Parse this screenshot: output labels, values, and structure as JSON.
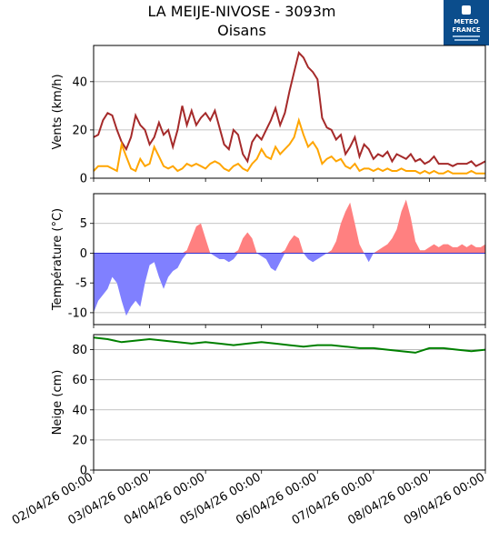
{
  "header": {
    "title": "LA MEIJE-NIVOSE - 3093m",
    "subtitle": "Oisans",
    "logo_line1": "METEO",
    "logo_line2": "FRANCE"
  },
  "colors": {
    "gust": "#a52a2a",
    "wind": "#ffa500",
    "temp_pos": "#ff8080",
    "temp_neg": "#8080ff",
    "snow": "#008000",
    "grid": "#b0b0b0",
    "logo_bg": "#0b4d8c"
  },
  "x_tick_labels": [
    "02/04/26 00:00",
    "03/04/26 00:00",
    "04/04/26 00:00",
    "05/04/26 00:00",
    "06/04/26 00:00",
    "07/04/26 00:00",
    "08/04/26 00:00",
    "09/04/26 00:00"
  ],
  "chart_data": [
    {
      "type": "line",
      "ylabel": "Vents (km/h)",
      "ylim": [
        0,
        55
      ],
      "yticks": [
        0,
        20,
        40
      ],
      "grid": true,
      "x_unit": "days since 02/04/26 00:00",
      "series": [
        {
          "x": [
            0,
            0.083,
            0.167,
            0.25,
            0.333,
            0.417,
            0.5,
            0.583,
            0.667,
            0.75,
            0.833,
            0.917,
            1.0,
            1.083,
            1.167,
            1.25,
            1.333,
            1.417,
            1.5,
            1.583,
            1.667,
            1.75,
            1.833,
            1.917,
            2.0,
            2.083,
            2.167,
            2.25,
            2.333,
            2.417,
            2.5,
            2.583,
            2.667,
            2.75,
            2.833,
            2.917,
            3.0,
            3.083,
            3.167,
            3.25,
            3.333,
            3.417,
            3.5,
            3.583,
            3.667,
            3.75,
            3.833,
            3.917,
            4.0,
            4.083,
            4.167,
            4.25,
            4.333,
            4.417,
            4.5,
            4.583,
            4.667,
            4.75,
            4.833,
            4.917,
            5.0,
            5.083,
            5.167,
            5.25,
            5.333,
            5.417,
            5.5,
            5.583,
            5.667,
            5.75,
            5.833,
            5.917,
            6.0,
            6.083,
            6.167,
            6.25,
            6.333,
            6.417,
            6.5,
            6.583,
            6.667,
            6.75,
            6.833,
            6.917,
            7.0
          ],
          "values": [
            17,
            18,
            24,
            27,
            26,
            20,
            15,
            12,
            17,
            26,
            22,
            20,
            14,
            17,
            23,
            18,
            20,
            13,
            20,
            30,
            22,
            28,
            22,
            25,
            27,
            24,
            28,
            21,
            14,
            12,
            20,
            18,
            10,
            7,
            15,
            18,
            16,
            20,
            24,
            29,
            22,
            27,
            36,
            44,
            52,
            50,
            46,
            44,
            41,
            25,
            21,
            20,
            16,
            18,
            10,
            13,
            17,
            9,
            14,
            12,
            8,
            10,
            9,
            11,
            7,
            10,
            9,
            8,
            10,
            7,
            8,
            6,
            7,
            9,
            6,
            6,
            6,
            5,
            6,
            6,
            6,
            7,
            5,
            6,
            7
          ]
        },
        {
          "x": [
            0,
            0.083,
            0.167,
            0.25,
            0.333,
            0.417,
            0.5,
            0.583,
            0.667,
            0.75,
            0.833,
            0.917,
            1.0,
            1.083,
            1.167,
            1.25,
            1.333,
            1.417,
            1.5,
            1.583,
            1.667,
            1.75,
            1.833,
            1.917,
            2.0,
            2.083,
            2.167,
            2.25,
            2.333,
            2.417,
            2.5,
            2.583,
            2.667,
            2.75,
            2.833,
            2.917,
            3.0,
            3.083,
            3.167,
            3.25,
            3.333,
            3.417,
            3.5,
            3.583,
            3.667,
            3.75,
            3.833,
            3.917,
            4.0,
            4.083,
            4.167,
            4.25,
            4.333,
            4.417,
            4.5,
            4.583,
            4.667,
            4.75,
            4.833,
            4.917,
            5.0,
            5.083,
            5.167,
            5.25,
            5.333,
            5.417,
            5.5,
            5.583,
            5.667,
            5.75,
            5.833,
            5.917,
            6.0,
            6.083,
            6.167,
            6.25,
            6.333,
            6.417,
            6.5,
            6.583,
            6.667,
            6.75,
            6.833,
            6.917,
            7.0
          ],
          "values": [
            3,
            5,
            5,
            5,
            4,
            3,
            14,
            9,
            4,
            3,
            8,
            5,
            6,
            13,
            9,
            5,
            4,
            5,
            3,
            4,
            6,
            5,
            6,
            5,
            4,
            6,
            7,
            6,
            4,
            3,
            5,
            6,
            4,
            3,
            6,
            8,
            12,
            9,
            8,
            13,
            10,
            12,
            14,
            17,
            24,
            18,
            13,
            15,
            12,
            6,
            8,
            9,
            7,
            8,
            5,
            4,
            6,
            3,
            4,
            4,
            3,
            4,
            3,
            4,
            3,
            3,
            4,
            3,
            3,
            3,
            2,
            3,
            2,
            3,
            2,
            2,
            3,
            2,
            2,
            2,
            2,
            3,
            2,
            2,
            2
          ]
        }
      ]
    },
    {
      "type": "area",
      "ylabel": "Température (°C)",
      "ylim": [
        -12,
        10
      ],
      "yticks": [
        -10,
        -5,
        0,
        5
      ],
      "grid": true,
      "x_unit": "days since 02/04/26 00:00",
      "baseline": 0,
      "x": [
        0,
        0.083,
        0.167,
        0.25,
        0.333,
        0.417,
        0.5,
        0.583,
        0.667,
        0.75,
        0.833,
        0.917,
        1.0,
        1.083,
        1.167,
        1.25,
        1.333,
        1.417,
        1.5,
        1.583,
        1.667,
        1.75,
        1.833,
        1.917,
        2.0,
        2.083,
        2.167,
        2.25,
        2.333,
        2.417,
        2.5,
        2.583,
        2.667,
        2.75,
        2.833,
        2.917,
        3.0,
        3.083,
        3.167,
        3.25,
        3.333,
        3.417,
        3.5,
        3.583,
        3.667,
        3.75,
        3.833,
        3.917,
        4.0,
        4.083,
        4.167,
        4.25,
        4.333,
        4.417,
        4.5,
        4.583,
        4.667,
        4.75,
        4.833,
        4.917,
        5.0,
        5.083,
        5.167,
        5.25,
        5.333,
        5.417,
        5.5,
        5.583,
        5.667,
        5.75,
        5.833,
        5.917,
        6.0,
        6.083,
        6.167,
        6.25,
        6.333,
        6.417,
        6.5,
        6.583,
        6.667,
        6.75,
        6.833,
        6.917,
        7.0
      ],
      "values": [
        -10,
        -8,
        -7,
        -6,
        -4,
        -5,
        -8,
        -10.5,
        -9,
        -8,
        -9,
        -5,
        -2,
        -1.5,
        -4,
        -6,
        -4,
        -3,
        -2.5,
        -1,
        0.5,
        2.5,
        4.5,
        5,
        2.5,
        0,
        -0.5,
        -1,
        -1,
        -1.5,
        -1,
        0.5,
        2.5,
        3.5,
        2.5,
        0,
        -0.5,
        -1,
        -2.5,
        -3,
        -1.5,
        0.5,
        2,
        3,
        2.5,
        0,
        -1,
        -1.5,
        -1,
        -0.5,
        0,
        0.5,
        2,
        5,
        7,
        8.5,
        5,
        1.5,
        0,
        -1.5,
        0,
        0.5,
        1,
        1.5,
        2.5,
        4,
        7,
        9,
        6,
        2,
        0.5,
        0.5,
        1,
        1.5,
        1,
        1.5,
        1.5,
        1,
        1,
        1.5,
        1,
        1.5,
        1,
        1,
        1.5
      ]
    },
    {
      "type": "line",
      "ylabel": "Neige (cm)",
      "ylim": [
        0,
        90
      ],
      "yticks": [
        0,
        20,
        40,
        60,
        80
      ],
      "grid": true,
      "x_unit": "days since 02/04/26 00:00",
      "series": [
        {
          "x": [
            0,
            0.25,
            0.5,
            0.75,
            1.0,
            1.25,
            1.5,
            1.75,
            2.0,
            2.25,
            2.5,
            2.75,
            3.0,
            3.25,
            3.5,
            3.75,
            4.0,
            4.25,
            4.5,
            4.75,
            5.0,
            5.25,
            5.5,
            5.75,
            6.0,
            6.25,
            6.5,
            6.75,
            7.0
          ],
          "values": [
            88,
            87,
            85,
            86,
            87,
            86,
            85,
            84,
            85,
            84,
            83,
            84,
            85,
            84,
            83,
            82,
            83,
            83,
            82,
            81,
            81,
            80,
            79,
            78,
            81,
            81,
            80,
            79,
            80
          ]
        }
      ]
    }
  ]
}
